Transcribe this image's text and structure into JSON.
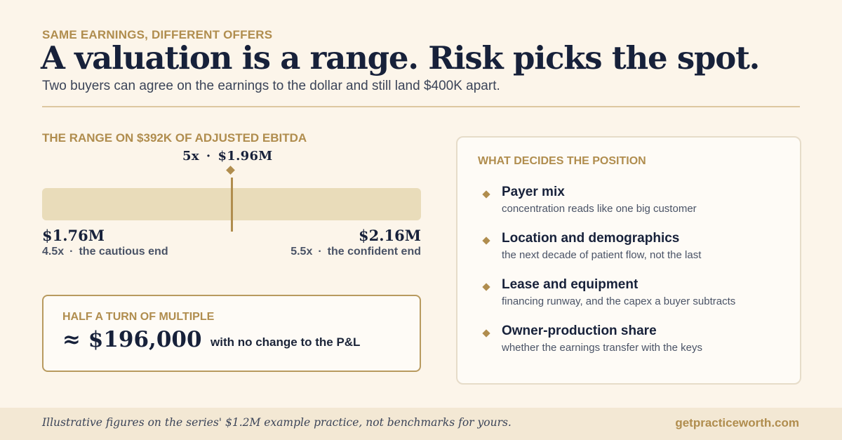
{
  "header": {
    "eyebrow": "SAME EARNINGS, DIFFERENT OFFERS",
    "headline": "A valuation is a range. Risk picks the spot.",
    "subhead": "Two buyers can agree on the earnings to the dollar and still land $400K apart."
  },
  "range": {
    "title": "THE RANGE ON $392K OF ADJUSTED EBITDA",
    "marker": {
      "multiple": "5x",
      "separator": "·",
      "value": "$1.96M"
    },
    "position": 0.5,
    "low": {
      "value": "$1.76M",
      "multiple": "4.5x",
      "separator": "·",
      "label": "the cautious end"
    },
    "high": {
      "value": "$2.16M",
      "multiple": "5.5x",
      "separator": "·",
      "label": "the confident end"
    }
  },
  "callout": {
    "title": "HALF A TURN OF MULTIPLE",
    "value": "≈ $196,000",
    "note": "with no change to the P&L"
  },
  "factors": {
    "title": "WHAT DECIDES THE POSITION",
    "items": [
      {
        "name": "Payer mix",
        "desc": "concentration reads like one big customer"
      },
      {
        "name": "Location and demographics",
        "desc": "the next decade of patient flow, not the last"
      },
      {
        "name": "Lease and equipment",
        "desc": "financing runway, and the capex a buyer subtracts"
      },
      {
        "name": "Owner-production share",
        "desc": "whether the earnings transfer with the keys"
      }
    ]
  },
  "footer": {
    "note": "Illustrative figures on the series' $1.2M example practice, not benchmarks for yours.",
    "url": "getpracticeworth.com"
  },
  "colors": {
    "accent": "#b08d4e",
    "ink": "#17213a",
    "background": "#fcf5ea",
    "track": "#e9dcba"
  }
}
